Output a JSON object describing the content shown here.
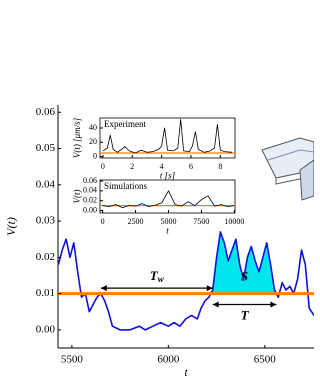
{
  "chart_data": [
    {
      "type": "line",
      "x_label": "t",
      "y_label": "V(t)",
      "xlim": [
        5428,
        6755
      ],
      "ylim": [
        -0.005,
        0.062
      ],
      "xticks": [
        5500,
        6000,
        6500
      ],
      "yticks": [
        {
          "value": 0,
          "label": "0.00"
        },
        0.01,
        0.02,
        0.03,
        0.04,
        0.05,
        0.06
      ],
      "threshold": 0.01,
      "threshold_color": "#ff8000",
      "fill_color": "#00e5ee",
      "series": [
        {
          "color": "#1010e0",
          "x": [
            5430,
            5450,
            5470,
            5490,
            5510,
            5530,
            5550,
            5570,
            5590,
            5610,
            5630,
            5650,
            5670,
            5690,
            5710,
            5750,
            5800,
            5850,
            5880,
            5920,
            5960,
            6000,
            6030,
            6060,
            6090,
            6120,
            6150,
            6170,
            6190,
            6210,
            6230,
            6250,
            6270,
            6290,
            6310,
            6330,
            6350,
            6370,
            6390,
            6410,
            6430,
            6450,
            6470,
            6490,
            6510,
            6530,
            6550,
            6570,
            6590,
            6610,
            6630,
            6650,
            6670,
            6690,
            6710,
            6730,
            6755
          ],
          "values": [
            0.018,
            0.022,
            0.025,
            0.02,
            0.024,
            0.016,
            0.009,
            0.01,
            0.005,
            0.007,
            0.009,
            0.01,
            0.008,
            0.005,
            0.001,
            0.0,
            0.0,
            0.001,
            0.0,
            0.001,
            0.002,
            0.001,
            0.002,
            0.001,
            0.003,
            0.004,
            0.003,
            0.006,
            0.008,
            0.009,
            0.011,
            0.02,
            0.027,
            0.024,
            0.019,
            0.022,
            0.025,
            0.018,
            0.014,
            0.02,
            0.023,
            0.019,
            0.016,
            0.02,
            0.024,
            0.018,
            0.011,
            0.009,
            0.013,
            0.011,
            0.012,
            0.01,
            0.014,
            0.022,
            0.018,
            0.006,
            0.004
          ]
        }
      ],
      "annotations": [
        {
          "label": "T",
          "subscript": "w",
          "span": [
            5650,
            6230
          ],
          "level": 0.0115,
          "placement": "above"
        },
        {
          "label": "S",
          "span": [
            6230,
            6560
          ],
          "placement": "inside"
        },
        {
          "label": "T",
          "span": [
            6230,
            6560
          ],
          "level": 0.007,
          "placement": "below"
        }
      ]
    },
    {
      "type": "line",
      "title": "Experiment",
      "x_label": "t [s]",
      "y_label": "V(t) [μm/s]",
      "xlim": [
        -0.2,
        9
      ],
      "ylim": [
        -2,
        54
      ],
      "xticks": [
        0,
        2,
        4,
        6,
        8
      ],
      "yticks": [
        0,
        20,
        40
      ],
      "threshold": 5,
      "threshold_color": "#ff8000",
      "series": [
        {
          "color": "#000000",
          "x": [
            0,
            0.3,
            0.5,
            0.7,
            1.0,
            1.5,
            1.8,
            2.2,
            2.6,
            3.0,
            3.4,
            3.8,
            4.0,
            4.2,
            4.4,
            4.8,
            5.1,
            5.3,
            5.5,
            5.9,
            6.1,
            6.3,
            6.5,
            6.9,
            7.3,
            7.6,
            7.8,
            8.0,
            8.3,
            8.8
          ],
          "values": [
            8,
            12,
            30,
            10,
            6,
            14,
            8,
            5,
            9,
            6,
            7,
            10,
            15,
            40,
            9,
            8,
            12,
            52,
            8,
            7,
            15,
            35,
            10,
            6,
            8,
            12,
            45,
            9,
            7,
            6
          ]
        }
      ]
    },
    {
      "type": "line",
      "title": "Simulations",
      "x_label": "t",
      "y_label": "V(t)",
      "xlim": [
        -200,
        10050
      ],
      "ylim": [
        -0.005,
        0.062
      ],
      "xticks": [
        0,
        2500,
        5000,
        7500,
        10000
      ],
      "yticks": [
        {
          "value": 0,
          "label": "0.00"
        },
        0.02,
        0.04,
        0.06
      ],
      "threshold": 0.01,
      "threshold_color": "#ff8000",
      "series": [
        {
          "color": "#000000",
          "x": [
            0,
            500,
            1000,
            1500,
            2000,
            2500,
            3000,
            3500,
            4000,
            4500,
            5000,
            5500,
            6000,
            6500,
            7000,
            7500,
            8000,
            8500,
            9000,
            9500,
            10000
          ],
          "values": [
            0.01,
            0.008,
            0.012,
            0.006,
            0.01,
            0.009,
            0.014,
            0.008,
            0.011,
            0.016,
            0.04,
            0.012,
            0.009,
            0.018,
            0.01,
            0.022,
            0.03,
            0.009,
            0.012,
            0.008,
            0.01
          ]
        }
      ]
    }
  ]
}
